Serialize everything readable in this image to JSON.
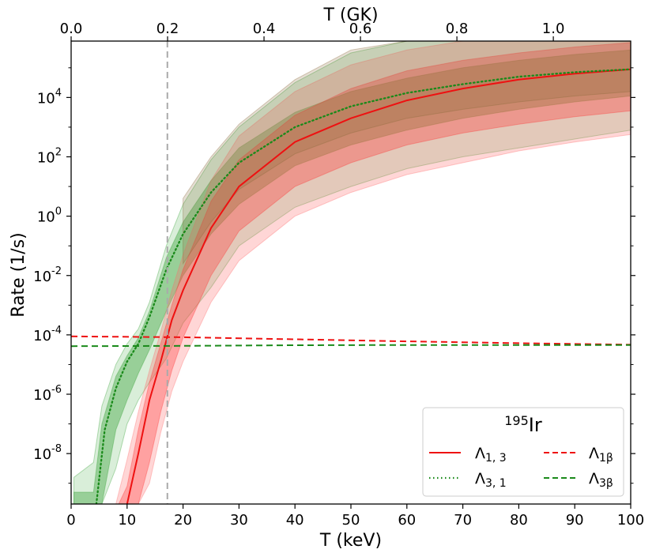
{
  "chart_data": {
    "type": "line",
    "x_axis": {
      "label": "T (keV)",
      "ticks": [
        0,
        10,
        20,
        30,
        40,
        50,
        60,
        70,
        80,
        90,
        100
      ],
      "range": [
        0,
        100
      ]
    },
    "top_axis": {
      "label": "T (GK)",
      "ticks": [
        "0.0",
        "0.2",
        "0.4",
        "0.6",
        "0.8",
        "1.0"
      ],
      "tick_values": [
        0.0,
        0.2,
        0.4,
        0.6,
        0.8,
        1.0
      ]
    },
    "y_axis": {
      "label": "Rate (1/s)",
      "scale": "log",
      "range_log10": [
        -9.7,
        5.9
      ],
      "ticks": [
        {
          "base": "10",
          "exp": "-8",
          "log": -8
        },
        {
          "base": "10",
          "exp": "-6",
          "log": -6
        },
        {
          "base": "10",
          "exp": "-4",
          "log": -4
        },
        {
          "base": "10",
          "exp": "-2",
          "log": -2
        },
        {
          "base": "10",
          "exp": "0",
          "log": 0
        },
        {
          "base": "10",
          "exp": "2",
          "log": 2
        },
        {
          "base": "10",
          "exp": "4",
          "log": 4
        }
      ]
    },
    "vline_keV": 17.2,
    "legend": {
      "title_sup": "195",
      "title_main": "Ir",
      "entries": [
        {
          "key": "lam13",
          "main": "Λ",
          "sub": "1, 3",
          "style": "solid",
          "color": "#ee1111"
        },
        {
          "key": "lam31",
          "main": "Λ",
          "sub": "3, 1",
          "style": "dotted",
          "color": "#1a8a1a"
        },
        {
          "key": "lam1b",
          "main": "Λ",
          "sub": "1β",
          "style": "dashed",
          "color": "#ee1111"
        },
        {
          "key": "lam3b",
          "main": "Λ",
          "sub": "3β",
          "style": "dashed",
          "color": "#1a8a1a"
        }
      ]
    },
    "series": [
      {
        "name": "Λ1,3",
        "color": "#ee1111",
        "style": "solid",
        "x": [
          10,
          12,
          14,
          16,
          18,
          20,
          25,
          30,
          40,
          50,
          60,
          70,
          80,
          90,
          100
        ],
        "y_log10": [
          -9.7,
          -8.0,
          -6.2,
          -4.9,
          -3.5,
          -2.5,
          -0.4,
          1.0,
          2.5,
          3.3,
          3.9,
          4.3,
          4.6,
          4.8,
          4.95
        ]
      },
      {
        "name": "Λ3,1",
        "color": "#1a8a1a",
        "style": "dotted",
        "x": [
          4.5,
          6,
          8,
          10,
          12,
          14,
          17,
          20,
          25,
          30,
          40,
          50,
          60,
          70,
          80,
          90,
          100
        ],
        "y_log10": [
          -9.7,
          -7.2,
          -5.8,
          -4.9,
          -4.3,
          -3.4,
          -1.8,
          -0.6,
          0.8,
          1.8,
          3.0,
          3.7,
          4.15,
          4.45,
          4.7,
          4.85,
          4.95
        ]
      },
      {
        "name": "Λ1β",
        "color": "#ee1111",
        "style": "dashed",
        "x": [
          0,
          20,
          40,
          60,
          80,
          100
        ],
        "y_log10": [
          -4.05,
          -4.08,
          -4.15,
          -4.22,
          -4.28,
          -4.33
        ]
      },
      {
        "name": "Λ3β",
        "color": "#1a8a1a",
        "style": "dashed",
        "x": [
          0,
          20,
          40,
          60,
          80,
          100
        ],
        "y_log10": [
          -4.38,
          -4.37,
          -4.35,
          -4.34,
          -4.34,
          -4.34
        ]
      }
    ],
    "bands": [
      {
        "name": "Λ3,1 outer band",
        "color": "#2f9e2f",
        "opacity": 0.18,
        "x": [
          0.5,
          4,
          5.5,
          8,
          10,
          12,
          14,
          17,
          20,
          25,
          30,
          40,
          50,
          60,
          70,
          80,
          90,
          100
        ],
        "upper": [
          -8.8,
          -8.3,
          -6.4,
          -5.0,
          -4.3,
          -3.8,
          -2.9,
          -1.0,
          0.4,
          1.9,
          3.0,
          4.5,
          5.5,
          5.9,
          5.9,
          5.9,
          5.9,
          5.9
        ],
        "lower": [
          -9.7,
          -9.7,
          -9.7,
          -8.5,
          -7.0,
          -6.2,
          -5.6,
          -4.8,
          -3.6,
          -2.4,
          -1.0,
          0.3,
          1.0,
          1.6,
          2.0,
          2.3,
          2.6,
          2.9
        ]
      },
      {
        "name": "Λ3,1 inner band",
        "color": "#2f9e2f",
        "opacity": 0.38,
        "x": [
          0.5,
          4,
          5.5,
          8,
          10,
          12,
          14,
          17,
          20,
          25,
          30,
          40,
          50,
          60,
          70,
          80,
          90,
          100
        ],
        "upper": [
          -9.3,
          -9.3,
          -7.0,
          -5.4,
          -4.7,
          -4.1,
          -3.2,
          -1.4,
          -0.2,
          1.2,
          2.3,
          3.5,
          4.2,
          4.65,
          5.0,
          5.25,
          5.45,
          5.6
        ],
        "lower": [
          -9.7,
          -9.7,
          -9.7,
          -7.2,
          -6.2,
          -5.3,
          -4.5,
          -3.2,
          -2.0,
          -0.6,
          0.4,
          1.7,
          2.4,
          2.9,
          3.3,
          3.6,
          3.85,
          4.05
        ]
      },
      {
        "name": "Λ1,3 outer band",
        "color": "#ff6b6b",
        "opacity": 0.28,
        "x": [
          8,
          10,
          12,
          14,
          16,
          18,
          20,
          25,
          30,
          40,
          50,
          60,
          70,
          80,
          90,
          100
        ],
        "upper": [
          -9.7,
          -8.2,
          -6.6,
          -5.2,
          -3.9,
          -2.5,
          -1.3,
          1.2,
          2.7,
          4.2,
          5.1,
          5.6,
          5.9,
          5.9,
          5.9,
          5.9
        ],
        "lower": [
          -9.7,
          -9.7,
          -9.7,
          -9.0,
          -7.3,
          -5.9,
          -4.9,
          -2.9,
          -1.5,
          0.0,
          0.8,
          1.4,
          1.8,
          2.2,
          2.5,
          2.75
        ]
      },
      {
        "name": "Λ1,3 inner band",
        "color": "#ff3333",
        "opacity": 0.32,
        "x": [
          8.5,
          10,
          12,
          14,
          16,
          18,
          20,
          25,
          30,
          40,
          50,
          60,
          70,
          80,
          90,
          100
        ],
        "upper": [
          -9.7,
          -9.1,
          -7.2,
          -5.6,
          -4.3,
          -3.0,
          -1.8,
          0.5,
          1.9,
          3.4,
          4.3,
          4.9,
          5.25,
          5.5,
          5.7,
          5.85
        ],
        "lower": [
          -9.7,
          -9.7,
          -9.7,
          -8.3,
          -6.6,
          -5.2,
          -4.1,
          -2.0,
          -0.5,
          1.0,
          1.8,
          2.4,
          2.8,
          3.1,
          3.35,
          3.55
        ]
      },
      {
        "name": "Λ3,1 upper overlap band",
        "color": "#8a6a3a",
        "opacity": 0.22,
        "x": [
          20,
          25,
          30,
          40,
          50,
          60,
          70,
          80,
          90,
          100
        ],
        "upper": [
          0.6,
          2.0,
          3.1,
          4.6,
          5.6,
          5.9,
          5.9,
          5.9,
          5.9,
          5.9
        ],
        "lower": [
          -1.6,
          -0.2,
          0.9,
          2.1,
          2.8,
          3.3,
          3.6,
          3.85,
          4.05,
          4.2
        ]
      }
    ]
  }
}
